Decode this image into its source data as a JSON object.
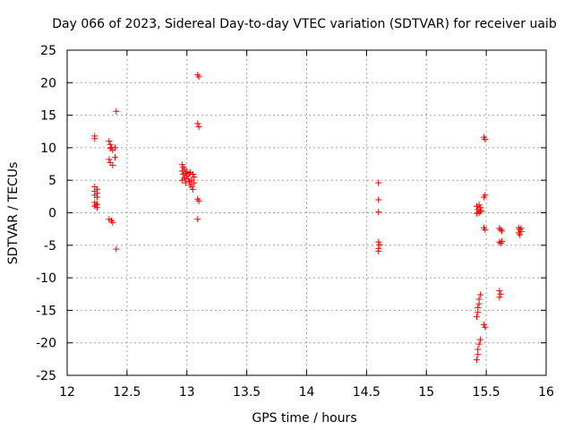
{
  "chart_data": {
    "type": "scatter",
    "title": "Day 066 of 2023, Sidereal Day-to-day VTEC variation (SDTVAR) for receiver uaib",
    "xlabel": "GPS time / hours",
    "ylabel": "SDTVAR / TECUs",
    "xlim": [
      12,
      16
    ],
    "ylim": [
      -25,
      25
    ],
    "x_ticks": [
      12,
      12.5,
      13,
      13.5,
      14,
      14.5,
      15,
      15.5,
      16
    ],
    "x_tick_labels": [
      "12",
      "12.5",
      "13",
      "13.5",
      "14",
      "14.5",
      "15",
      "15.5",
      "16"
    ],
    "y_ticks": [
      -25,
      -20,
      -15,
      -10,
      -5,
      0,
      5,
      10,
      15,
      20,
      25
    ],
    "y_tick_labels": [
      "-25",
      "-20",
      "-15",
      "-10",
      "-5",
      "0",
      "5",
      "10",
      "15",
      "20",
      "25"
    ],
    "grid": true,
    "marker": "+",
    "color": "#ff0000",
    "series": [
      {
        "name": "SDTVAR",
        "points": [
          [
            12.23,
            11.8
          ],
          [
            12.23,
            11.4
          ],
          [
            12.23,
            4.0
          ],
          [
            12.25,
            3.6
          ],
          [
            12.23,
            3.3
          ],
          [
            12.25,
            3.0
          ],
          [
            12.23,
            2.7
          ],
          [
            12.25,
            2.4
          ],
          [
            12.23,
            1.6
          ],
          [
            12.25,
            1.3
          ],
          [
            12.23,
            1.0
          ],
          [
            12.25,
            0.8
          ],
          [
            12.24,
            1.2
          ],
          [
            12.35,
            11.0
          ],
          [
            12.36,
            10.5
          ],
          [
            12.37,
            10.0
          ],
          [
            12.38,
            9.6
          ],
          [
            12.36,
            9.9
          ],
          [
            12.4,
            10.0
          ],
          [
            12.4,
            8.5
          ],
          [
            12.35,
            8.2
          ],
          [
            12.36,
            7.7
          ],
          [
            12.38,
            7.3
          ],
          [
            12.35,
            -1.0
          ],
          [
            12.37,
            -1.2
          ],
          [
            12.38,
            -1.5
          ],
          [
            12.41,
            15.6
          ],
          [
            12.41,
            -5.6
          ],
          [
            12.96,
            7.4
          ],
          [
            12.97,
            7.0
          ],
          [
            12.98,
            6.7
          ],
          [
            12.96,
            6.4
          ],
          [
            12.99,
            6.1
          ],
          [
            12.97,
            5.9
          ],
          [
            13.0,
            5.7
          ],
          [
            12.98,
            5.4
          ],
          [
            13.01,
            5.2
          ],
          [
            12.96,
            5.0
          ],
          [
            13.02,
            4.8
          ],
          [
            12.99,
            4.6
          ],
          [
            13.03,
            4.3
          ],
          [
            13.04,
            4.0
          ],
          [
            13.05,
            3.6
          ],
          [
            13.03,
            6.2
          ],
          [
            13.05,
            5.9
          ],
          [
            13.06,
            5.5
          ],
          [
            13.04,
            5.0
          ],
          [
            13.06,
            4.6
          ],
          [
            13.0,
            6.3
          ],
          [
            13.02,
            6.0
          ],
          [
            12.98,
            5.2
          ],
          [
            13.09,
            21.2
          ],
          [
            13.1,
            20.9
          ],
          [
            13.09,
            13.7
          ],
          [
            13.1,
            13.2
          ],
          [
            13.09,
            2.1
          ],
          [
            13.1,
            1.8
          ],
          [
            13.09,
            -1.0
          ],
          [
            14.6,
            4.6
          ],
          [
            14.6,
            2.0
          ],
          [
            14.6,
            0.1
          ],
          [
            14.6,
            -4.5
          ],
          [
            14.61,
            -4.9
          ],
          [
            14.6,
            -5.5
          ],
          [
            14.6,
            -5.9
          ],
          [
            15.42,
            -16.0
          ],
          [
            15.43,
            -15.3
          ],
          [
            15.43,
            -14.6
          ],
          [
            15.44,
            -14.0
          ],
          [
            15.44,
            -13.3
          ],
          [
            15.45,
            -12.6
          ],
          [
            15.42,
            -22.6
          ],
          [
            15.43,
            -21.8
          ],
          [
            15.43,
            -21.0
          ],
          [
            15.44,
            -20.2
          ],
          [
            15.45,
            -19.5
          ],
          [
            15.42,
            1.0
          ],
          [
            15.44,
            1.2
          ],
          [
            15.45,
            0.8
          ],
          [
            15.43,
            0.5
          ],
          [
            15.45,
            0.2
          ],
          [
            15.42,
            -0.1
          ],
          [
            15.44,
            0.0
          ],
          [
            15.46,
            0.3
          ],
          [
            15.48,
            11.6
          ],
          [
            15.49,
            11.3
          ],
          [
            15.48,
            2.4
          ],
          [
            15.49,
            2.7
          ],
          [
            15.48,
            -2.3
          ],
          [
            15.49,
            -2.6
          ],
          [
            15.48,
            -17.2
          ],
          [
            15.49,
            -17.6
          ],
          [
            15.61,
            -2.4
          ],
          [
            15.62,
            -2.6
          ],
          [
            15.63,
            -2.8
          ],
          [
            15.61,
            -4.5
          ],
          [
            15.62,
            -4.7
          ],
          [
            15.63,
            -4.4
          ],
          [
            15.61,
            -12.0
          ],
          [
            15.62,
            -12.5
          ],
          [
            15.61,
            -13.0
          ],
          [
            15.77,
            -2.3
          ],
          [
            15.78,
            -2.6
          ],
          [
            15.79,
            -2.9
          ],
          [
            15.77,
            -3.1
          ],
          [
            15.78,
            -3.4
          ],
          [
            15.79,
            -2.4
          ]
        ]
      }
    ]
  }
}
